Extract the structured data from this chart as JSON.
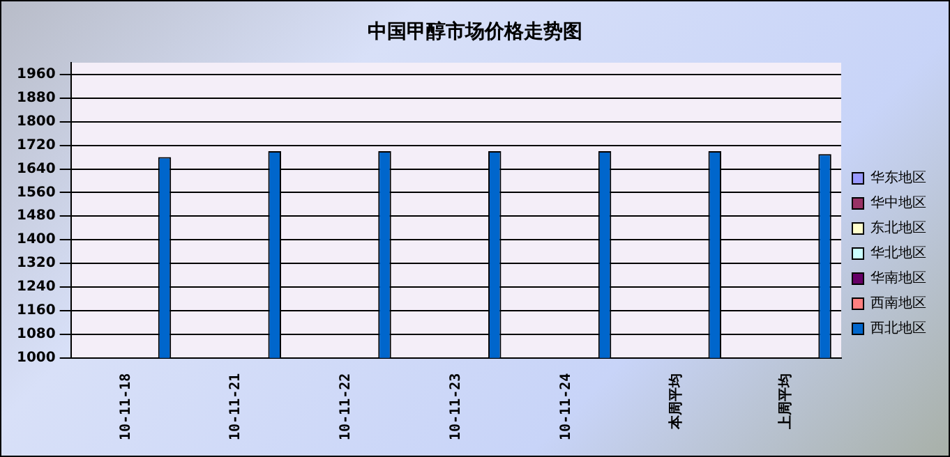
{
  "chart_data": {
    "type": "bar",
    "title": "中国甲醇市场价格走势图",
    "categories": [
      "10-11-18",
      "10-11-21",
      "10-11-22",
      "10-11-23",
      "10-11-24",
      "本周平均",
      "上周平均"
    ],
    "series": [
      {
        "name": "华东地区",
        "color": "#9999ff",
        "values": [
          null,
          null,
          null,
          null,
          null,
          null,
          null
        ]
      },
      {
        "name": "华中地区",
        "color": "#993366",
        "values": [
          null,
          null,
          null,
          null,
          null,
          null,
          null
        ]
      },
      {
        "name": "东北地区",
        "color": "#ffffcc",
        "values": [
          null,
          null,
          null,
          null,
          null,
          null,
          null
        ]
      },
      {
        "name": "华北地区",
        "color": "#ccffff",
        "values": [
          null,
          null,
          null,
          null,
          null,
          null,
          null
        ]
      },
      {
        "name": "华南地区",
        "color": "#660066",
        "values": [
          null,
          null,
          null,
          null,
          null,
          null,
          null
        ]
      },
      {
        "name": "西南地区",
        "color": "#ff8080",
        "values": [
          null,
          null,
          null,
          null,
          null,
          null,
          null
        ]
      },
      {
        "name": "西北地区",
        "color": "#0066cc",
        "values": [
          1680,
          1700,
          1700,
          1700,
          1700,
          1700,
          1690
        ]
      }
    ],
    "ylim": [
      1000,
      2000
    ],
    "yticks": [
      1000,
      1080,
      1160,
      1240,
      1320,
      1400,
      1480,
      1560,
      1640,
      1720,
      1800,
      1880,
      1960
    ],
    "grid": "y",
    "legend": "right"
  }
}
